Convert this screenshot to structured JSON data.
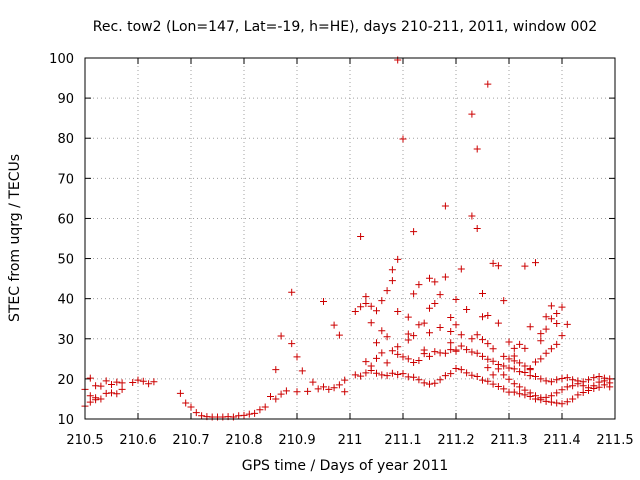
{
  "chart_data": {
    "type": "scatter",
    "title": "Rec. tow2 (Lon=147, Lat=-19, h=HE), days 210-211, 2011, window 002",
    "xlabel": "GPS time / Days of year 2011",
    "ylabel": "STEC from uqrg / TECUs",
    "xlim": [
      210.5,
      211.5
    ],
    "ylim": [
      10,
      100
    ],
    "xticks": [
      210.5,
      210.6,
      210.7,
      210.8,
      210.9,
      211,
      211.1,
      211.2,
      211.3,
      211.4,
      211.5
    ],
    "xtick_labels": [
      "210.5",
      "210.6",
      "210.7",
      "210.8",
      "210.9",
      "211",
      "211.1",
      "211.2",
      "211.3",
      "211.4",
      "211.5"
    ],
    "yticks": [
      10,
      20,
      30,
      40,
      50,
      60,
      70,
      80,
      90,
      100
    ],
    "ytick_labels": [
      "10",
      "20",
      "30",
      "40",
      "50",
      "60",
      "70",
      "80",
      "90",
      "100"
    ],
    "grid": true,
    "marker": "plus",
    "color": "#cc0000",
    "series": [
      {
        "points": [
          [
            210.5,
            17.4
          ],
          [
            210.51,
            20.2
          ],
          [
            210.52,
            18.3
          ],
          [
            210.53,
            18.2
          ],
          [
            210.54,
            19.5
          ],
          [
            210.55,
            18.6
          ],
          [
            210.56,
            19.2
          ],
          [
            210.57,
            19.0
          ],
          [
            210.59,
            19.1
          ],
          [
            210.6,
            19.7
          ],
          [
            210.61,
            19.4
          ],
          [
            210.62,
            18.8
          ],
          [
            210.63,
            19.3
          ],
          [
            210.5,
            13.2
          ],
          [
            210.51,
            14.2
          ],
          [
            210.52,
            15.3
          ],
          [
            210.53,
            15.0
          ],
          [
            210.54,
            16.4
          ],
          [
            210.55,
            16.5
          ],
          [
            210.56,
            16.3
          ],
          [
            210.57,
            17.4
          ],
          [
            210.52,
            14.8
          ],
          [
            210.51,
            15.8
          ],
          [
            210.68,
            16.4
          ],
          [
            210.69,
            14.0
          ],
          [
            210.7,
            13.0
          ],
          [
            210.71,
            11.6
          ],
          [
            210.72,
            10.8
          ],
          [
            210.73,
            10.6
          ],
          [
            210.74,
            10.5
          ],
          [
            210.75,
            10.5
          ],
          [
            210.76,
            10.5
          ],
          [
            210.77,
            10.6
          ],
          [
            210.78,
            10.5
          ],
          [
            210.79,
            10.8
          ],
          [
            210.8,
            10.9
          ],
          [
            210.81,
            11.2
          ],
          [
            210.82,
            11.4
          ],
          [
            210.83,
            12.3
          ],
          [
            210.84,
            13.0
          ],
          [
            210.85,
            15.6
          ],
          [
            210.86,
            15.0
          ],
          [
            210.87,
            16.2
          ],
          [
            210.86,
            22.3
          ],
          [
            210.87,
            30.7
          ],
          [
            210.88,
            17.0
          ],
          [
            210.89,
            41.6
          ],
          [
            210.89,
            28.8
          ],
          [
            210.9,
            25.5
          ],
          [
            210.9,
            16.8
          ],
          [
            210.91,
            22.0
          ],
          [
            210.92,
            16.9
          ],
          [
            210.93,
            19.2
          ],
          [
            210.94,
            17.5
          ],
          [
            210.95,
            39.3
          ],
          [
            210.95,
            18.0
          ],
          [
            210.96,
            17.4
          ],
          [
            210.97,
            33.4
          ],
          [
            210.97,
            17.8
          ],
          [
            210.98,
            30.9
          ],
          [
            210.98,
            18.5
          ],
          [
            210.99,
            19.7
          ],
          [
            210.99,
            16.8
          ],
          [
            211.01,
            36.8
          ],
          [
            211.02,
            55.5
          ],
          [
            211.02,
            38.0
          ],
          [
            211.03,
            40.5
          ],
          [
            211.03,
            38.8
          ],
          [
            211.04,
            38.1
          ],
          [
            211.04,
            34.0
          ],
          [
            211.05,
            37.0
          ],
          [
            211.06,
            32.0
          ],
          [
            211.06,
            39.5
          ],
          [
            211.07,
            42.0
          ],
          [
            211.08,
            47.2
          ],
          [
            211.08,
            44.5
          ],
          [
            211.09,
            49.8
          ],
          [
            211.09,
            36.8
          ],
          [
            211.09,
            99.5
          ],
          [
            211.1,
            79.8
          ],
          [
            211.11,
            29.7
          ],
          [
            211.11,
            35.4
          ],
          [
            211.12,
            56.7
          ],
          [
            211.12,
            41.2
          ],
          [
            211.13,
            43.5
          ],
          [
            211.14,
            33.9
          ],
          [
            211.14,
            27.2
          ],
          [
            211.15,
            45.1
          ],
          [
            211.15,
            37.6
          ],
          [
            211.16,
            44.2
          ],
          [
            211.16,
            38.8
          ],
          [
            211.17,
            41.0
          ],
          [
            211.18,
            63.1
          ],
          [
            211.18,
            45.4
          ],
          [
            211.19,
            35.3
          ],
          [
            211.19,
            29.0
          ],
          [
            211.2,
            39.8
          ],
          [
            211.2,
            26.9
          ],
          [
            211.21,
            47.4
          ],
          [
            211.22,
            37.3
          ],
          [
            211.23,
            60.6
          ],
          [
            211.23,
            86.0
          ],
          [
            211.24,
            57.5
          ],
          [
            211.24,
            77.3
          ],
          [
            211.25,
            35.5
          ],
          [
            211.25,
            41.3
          ],
          [
            211.26,
            93.5
          ],
          [
            211.26,
            35.8
          ],
          [
            211.27,
            48.8
          ],
          [
            211.28,
            48.2
          ],
          [
            211.28,
            33.9
          ],
          [
            211.29,
            39.5
          ],
          [
            211.3,
            29.2
          ],
          [
            211.31,
            27.6
          ],
          [
            211.32,
            28.6
          ],
          [
            211.34,
            33.0
          ],
          [
            211.35,
            49.0
          ],
          [
            211.33,
            48.1
          ],
          [
            211.36,
            31.3
          ],
          [
            211.37,
            35.5
          ],
          [
            211.38,
            38.2
          ],
          [
            211.39,
            33.8
          ],
          [
            211.41,
            33.6
          ],
          [
            211.01,
            21.0
          ],
          [
            211.02,
            20.7
          ],
          [
            211.03,
            21.5
          ],
          [
            211.04,
            22.1
          ],
          [
            211.05,
            21.4
          ],
          [
            211.06,
            21.0
          ],
          [
            211.07,
            20.8
          ],
          [
            211.08,
            21.4
          ],
          [
            211.09,
            21.1
          ],
          [
            211.1,
            21.3
          ],
          [
            211.11,
            20.5
          ],
          [
            211.12,
            20.4
          ],
          [
            211.13,
            19.8
          ],
          [
            211.14,
            19.0
          ],
          [
            211.15,
            18.7
          ],
          [
            211.16,
            18.9
          ],
          [
            211.17,
            19.8
          ],
          [
            211.18,
            20.8
          ],
          [
            211.19,
            21.3
          ],
          [
            211.2,
            22.6
          ],
          [
            211.21,
            22.3
          ],
          [
            211.22,
            21.5
          ],
          [
            211.23,
            20.9
          ],
          [
            211.24,
            20.6
          ],
          [
            211.25,
            19.7
          ],
          [
            211.26,
            19.4
          ],
          [
            211.27,
            18.7
          ],
          [
            211.28,
            18.1
          ],
          [
            211.29,
            17.5
          ],
          [
            211.3,
            16.7
          ],
          [
            211.31,
            16.7
          ],
          [
            211.32,
            16.3
          ],
          [
            211.33,
            16.0
          ],
          [
            211.34,
            15.6
          ],
          [
            211.35,
            15.0
          ],
          [
            211.36,
            14.8
          ],
          [
            211.37,
            14.4
          ],
          [
            211.38,
            14.2
          ],
          [
            211.39,
            14.0
          ],
          [
            211.4,
            13.8
          ],
          [
            211.41,
            14.3
          ],
          [
            211.42,
            15.0
          ],
          [
            211.43,
            16.0
          ],
          [
            211.44,
            16.6
          ],
          [
            211.45,
            17.1
          ],
          [
            211.46,
            17.6
          ],
          [
            211.47,
            17.9
          ],
          [
            211.48,
            18.5
          ],
          [
            211.49,
            19.0
          ],
          [
            211.03,
            24.3
          ],
          [
            211.04,
            23.2
          ],
          [
            211.05,
            25.1
          ],
          [
            211.06,
            26.5
          ],
          [
            211.07,
            24.0
          ],
          [
            211.08,
            27.0
          ],
          [
            211.09,
            26.1
          ],
          [
            211.1,
            25.5
          ],
          [
            211.11,
            25.0
          ],
          [
            211.12,
            24.1
          ],
          [
            211.13,
            24.6
          ],
          [
            211.14,
            26.3
          ],
          [
            211.15,
            25.6
          ],
          [
            211.16,
            26.8
          ],
          [
            211.17,
            26.5
          ],
          [
            211.18,
            26.4
          ],
          [
            211.19,
            27.3
          ],
          [
            211.2,
            27.2
          ],
          [
            211.21,
            28.2
          ],
          [
            211.22,
            27.3
          ],
          [
            211.23,
            26.7
          ],
          [
            211.24,
            26.4
          ],
          [
            211.25,
            25.6
          ],
          [
            211.26,
            24.9
          ],
          [
            211.27,
            24.4
          ],
          [
            211.28,
            23.6
          ],
          [
            211.29,
            23.2
          ],
          [
            211.3,
            22.7
          ],
          [
            211.31,
            22.5
          ],
          [
            211.32,
            21.8
          ],
          [
            211.33,
            21.6
          ],
          [
            211.34,
            20.8
          ],
          [
            211.35,
            20.6
          ],
          [
            211.36,
            20.0
          ],
          [
            211.37,
            19.5
          ],
          [
            211.38,
            19.3
          ],
          [
            211.39,
            19.8
          ],
          [
            211.4,
            20.1
          ],
          [
            211.41,
            20.3
          ],
          [
            211.42,
            19.8
          ],
          [
            211.43,
            19.5
          ],
          [
            211.44,
            19.3
          ],
          [
            211.45,
            19.8
          ],
          [
            211.46,
            20.3
          ],
          [
            211.47,
            20.6
          ],
          [
            211.48,
            20.2
          ],
          [
            211.49,
            20.0
          ],
          [
            211.05,
            29.0
          ],
          [
            211.07,
            30.5
          ],
          [
            211.09,
            28.0
          ],
          [
            211.11,
            31.2
          ],
          [
            211.12,
            30.8
          ],
          [
            211.13,
            33.5
          ],
          [
            211.15,
            31.5
          ],
          [
            211.17,
            32.8
          ],
          [
            211.19,
            31.8
          ],
          [
            211.2,
            33.5
          ],
          [
            211.21,
            31.0
          ],
          [
            211.23,
            30.0
          ],
          [
            211.24,
            31.0
          ],
          [
            211.25,
            29.8
          ],
          [
            211.26,
            28.8
          ],
          [
            211.27,
            27.5
          ],
          [
            211.29,
            25.6
          ],
          [
            211.3,
            25.0
          ],
          [
            211.31,
            24.5
          ],
          [
            211.32,
            24.0
          ],
          [
            211.33,
            23.2
          ],
          [
            211.34,
            22.6
          ],
          [
            211.35,
            24.2
          ],
          [
            211.36,
            25.0
          ],
          [
            211.37,
            26.4
          ],
          [
            211.38,
            27.5
          ],
          [
            211.39,
            28.6
          ],
          [
            211.4,
            30.8
          ],
          [
            211.36,
            29.5
          ],
          [
            211.37,
            32.4
          ],
          [
            211.38,
            35.0
          ],
          [
            211.39,
            36.3
          ],
          [
            211.4,
            37.9
          ],
          [
            211.34,
            22.3
          ],
          [
            211.33,
            27.6
          ],
          [
            211.31,
            25.7
          ],
          [
            211.28,
            22.5
          ],
          [
            211.27,
            21.0
          ],
          [
            211.26,
            22.8
          ],
          [
            211.29,
            21.0
          ],
          [
            211.3,
            19.9
          ],
          [
            211.31,
            18.8
          ],
          [
            211.32,
            18.0
          ],
          [
            211.33,
            17.2
          ],
          [
            211.34,
            16.5
          ],
          [
            211.35,
            15.8
          ],
          [
            211.36,
            15.3
          ],
          [
            211.37,
            15.4
          ],
          [
            211.38,
            15.8
          ],
          [
            211.39,
            16.5
          ],
          [
            211.4,
            17.3
          ],
          [
            211.41,
            18.0
          ],
          [
            211.42,
            18.3
          ],
          [
            211.43,
            18.8
          ],
          [
            211.44,
            18.3
          ],
          [
            211.45,
            17.8
          ],
          [
            211.46,
            18.3
          ],
          [
            211.47,
            19.2
          ],
          [
            211.48,
            19.5
          ],
          [
            211.49,
            18.0
          ]
        ]
      }
    ]
  }
}
